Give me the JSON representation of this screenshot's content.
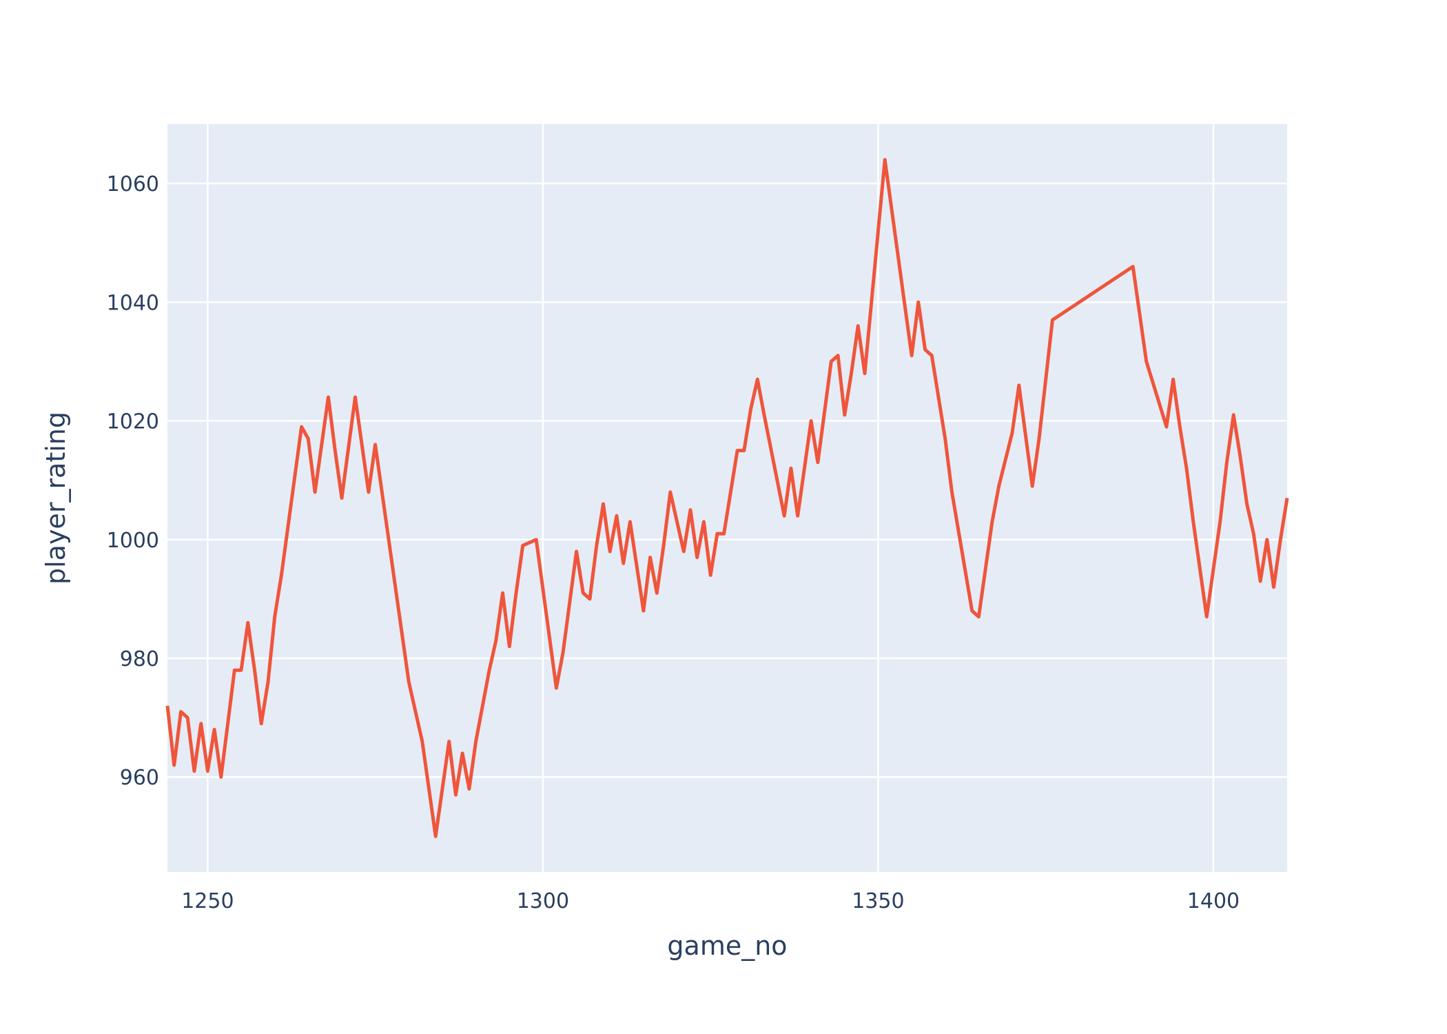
{
  "chart_data": {
    "type": "line",
    "title": "",
    "xlabel": "game_no",
    "ylabel": "player_rating",
    "xlim": [
      1244,
      1411
    ],
    "ylim": [
      944,
      1070
    ],
    "x_ticks": [
      1250,
      1300,
      1350,
      1400
    ],
    "y_ticks": [
      960,
      980,
      1000,
      1020,
      1040,
      1060
    ],
    "grid": true,
    "legend": "none",
    "colors": {
      "line": "#ef553b",
      "plot_bg": "#e5ecf6",
      "grid": "#ffffff",
      "text": "#2a3f5f",
      "page_bg": "#ffffff"
    },
    "series": [
      {
        "x": [
          1244,
          1245,
          1246,
          1247,
          1248,
          1249,
          1250,
          1251,
          1252,
          1253,
          1254,
          1255,
          1256,
          1257,
          1258,
          1259,
          1260,
          1261,
          1264,
          1265,
          1266,
          1268,
          1269,
          1270,
          1272,
          1273,
          1274,
          1275,
          1280,
          1282,
          1284,
          1286,
          1287,
          1288,
          1289,
          1290,
          1292,
          1293,
          1294,
          1295,
          1296,
          1297,
          1298,
          1299,
          1302,
          1303,
          1305,
          1306,
          1307,
          1308,
          1309,
          1310,
          1311,
          1312,
          1313,
          1315,
          1316,
          1317,
          1318,
          1319,
          1321,
          1322,
          1323,
          1324,
          1325,
          1326,
          1327,
          1329,
          1330,
          1331,
          1332,
          1333,
          1336,
          1337,
          1338,
          1340,
          1341,
          1343,
          1344,
          1345,
          1346,
          1347,
          1348,
          1351,
          1355,
          1356,
          1357,
          1358,
          1360,
          1361,
          1364,
          1365,
          1367,
          1368,
          1370,
          1371,
          1373,
          1374,
          1376,
          1388,
          1390,
          1393,
          1394,
          1395,
          1396,
          1397,
          1399,
          1401,
          1402,
          1403,
          1404,
          1405,
          1406,
          1407,
          1408,
          1409,
          1410,
          1411
        ],
        "y": [
          972,
          962,
          971,
          970,
          961,
          969,
          961,
          968,
          960,
          969,
          978,
          978,
          986,
          978,
          969,
          976,
          987,
          994,
          1019,
          1017,
          1008,
          1024,
          1015,
          1007,
          1024,
          1016,
          1008,
          1016,
          976,
          966,
          950,
          966,
          957,
          964,
          958,
          966,
          978,
          983,
          991,
          982,
          991,
          999,
          999.5,
          1000,
          975,
          981,
          998,
          991,
          990,
          999,
          1006,
          998,
          1004,
          996,
          1003,
          988,
          997,
          991,
          999,
          1008,
          998,
          1005,
          997,
          1003,
          994,
          1001,
          1001,
          1015,
          1015,
          1022,
          1027,
          1021,
          1004,
          1012,
          1004,
          1020,
          1013,
          1030,
          1031,
          1021,
          1028,
          1036,
          1028,
          1064,
          1031,
          1040,
          1032,
          1031,
          1017,
          1008,
          988,
          987,
          1003,
          1009,
          1018,
          1026,
          1009,
          1017,
          1037,
          1046,
          1030,
          1019,
          1027,
          1019,
          1012,
          1003,
          987,
          1003,
          1013,
          1021,
          1014,
          1006,
          1001,
          993,
          1000,
          992,
          1000,
          1007
        ]
      }
    ]
  }
}
